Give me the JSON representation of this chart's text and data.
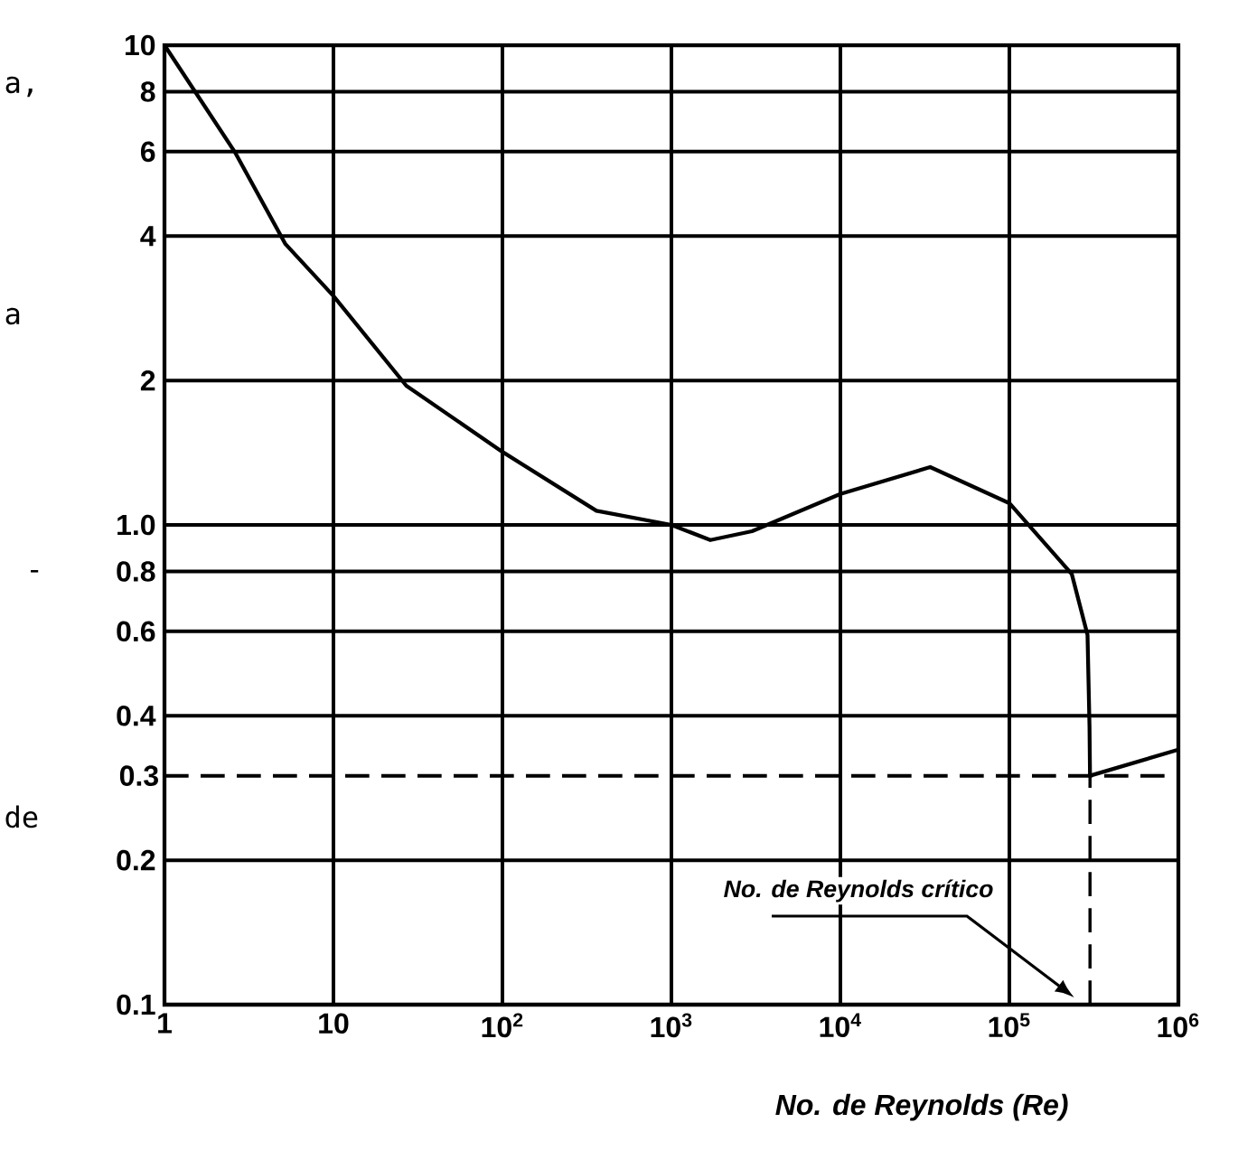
{
  "chart_data": {
    "type": "line",
    "xlabel": "No. de Reynolds (Re)",
    "x": [
      1,
      2.6,
      5.2,
      10,
      27,
      100,
      360,
      1000,
      1700,
      3000,
      10000,
      34000,
      100000,
      234000,
      290000,
      298000,
      300000,
      1000000
    ],
    "series": [
      {
        "color": "#000000",
        "values": [
          10,
          6.0,
          3.85,
          3.0,
          1.95,
          1.42,
          1.07,
          1.0,
          0.93,
          0.97,
          1.16,
          1.32,
          1.11,
          0.79,
          0.59,
          0.38,
          0.3,
          0.34
        ]
      }
    ],
    "log": "xy",
    "xlim": [
      1,
      1000000
    ],
    "ylim": [
      0.1,
      10
    ],
    "xticks": [
      1,
      10,
      {
        "value": 100,
        "label": "10$^{2}$"
      },
      {
        "value": 1000,
        "label": "10$^{3}$"
      },
      {
        "value": 10000,
        "label": "10$^{4}$"
      },
      {
        "value": 100000,
        "label": "10$^{5}$"
      },
      {
        "value": 1000000,
        "label": "10$^{6}$"
      }
    ],
    "yticks": [
      0.1,
      0.2,
      0.4,
      0.6,
      0.8,
      {
        "value": 1,
        "label": "1.0"
      },
      2,
      4,
      6,
      8,
      10
    ],
    "grid": true,
    "marker": "none",
    "line_style": "solid",
    "ref_lines": [
      {
        "axis": "y",
        "value": 0.3,
        "label": "0.3",
        "line_style": "dashed"
      },
      {
        "axis": "x",
        "value": 300000,
        "line_style": "dashed"
      }
    ],
    "annotations": [
      "a,",
      "a",
      "-",
      "de",
      "No. de Reynolds crítico"
    ]
  }
}
